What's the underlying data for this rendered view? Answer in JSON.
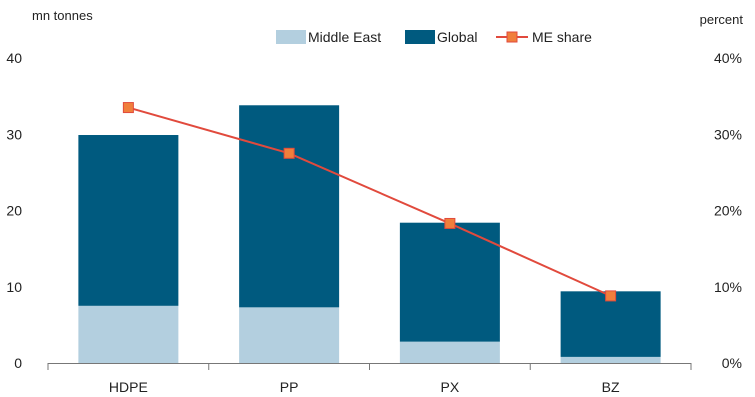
{
  "chart_data": {
    "type": "bar",
    "stacked": true,
    "categories": [
      "HDPE",
      "PP",
      "PX",
      "BZ"
    ],
    "series": [
      {
        "name": "Middle East",
        "type": "bar",
        "axis": "left",
        "color": "#b3cfdf",
        "values": [
          7.5,
          7.3,
          2.8,
          0.8
        ]
      },
      {
        "name": "Global",
        "type": "bar",
        "axis": "left",
        "color": "#005a7f",
        "values": [
          22.4,
          26.5,
          15.6,
          8.6
        ]
      },
      {
        "name": "ME share",
        "type": "line",
        "axis": "right",
        "color": "#e14a3d",
        "marker_color": "#f07f3c",
        "values": [
          33.5,
          27.5,
          18.3,
          8.8
        ]
      }
    ],
    "y_left": {
      "label": "mn tonnes",
      "ylim": [
        0,
        40
      ],
      "ticks": [
        "0",
        "10",
        "20",
        "30",
        "40"
      ]
    },
    "y_right": {
      "label": "percent",
      "ylim": [
        0,
        40
      ],
      "ticks": [
        "0%",
        "10%",
        "20%",
        "30%",
        "40%"
      ]
    },
    "legend_position": "top-center",
    "grid": false
  }
}
